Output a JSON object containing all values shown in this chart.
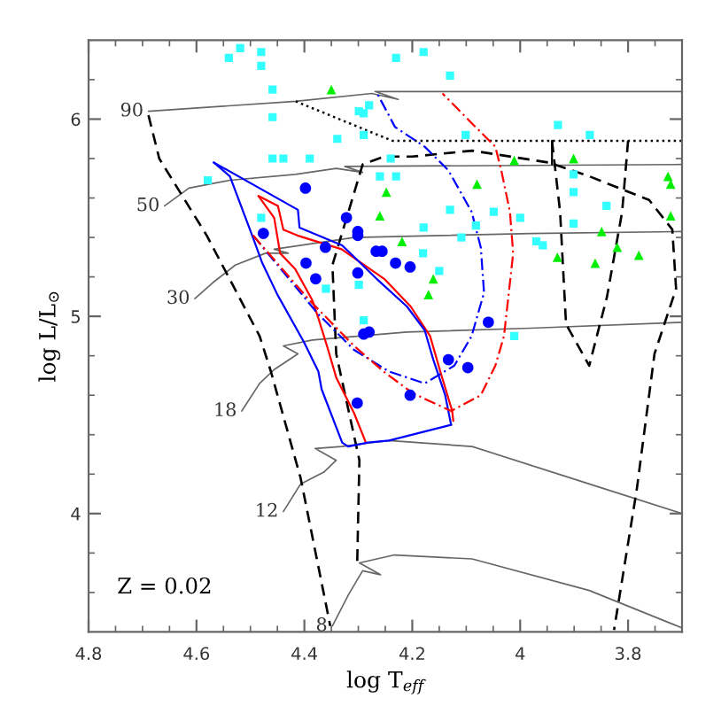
{
  "chart_data": {
    "type": "line",
    "xlabel": "log T$_{eff}$",
    "ylabel": "log L/L$_{⊙}$",
    "xlim": [
      4.8,
      3.7
    ],
    "ylim": [
      3.4,
      6.4
    ],
    "xticks": [
      4.8,
      {
        "value": 4.75,
        "label": null
      },
      {
        "value": 4.7,
        "label": null
      },
      {
        "value": 4.65,
        "label": null
      },
      4.6,
      {
        "value": 4.55,
        "label": null
      },
      {
        "value": 4.5,
        "label": null
      },
      {
        "value": 4.45,
        "label": null
      },
      4.4,
      {
        "value": 4.35,
        "label": null
      },
      {
        "value": 4.3,
        "label": null
      },
      {
        "value": 4.25,
        "label": null
      },
      4.2,
      {
        "value": 4.15,
        "label": null
      },
      {
        "value": 4.1,
        "label": null
      },
      {
        "value": 4.05,
        "label": null
      },
      4,
      {
        "value": 3.95,
        "label": null
      },
      {
        "value": 3.9,
        "label": null
      },
      {
        "value": 3.85,
        "label": null
      },
      3.8,
      {
        "value": 3.75,
        "label": null
      }
    ],
    "yticks": [
      {
        "value": 3.6,
        "label": null
      },
      {
        "value": 3.8,
        "label": null
      },
      4,
      {
        "value": 4.2,
        "label": null
      },
      {
        "value": 4.4,
        "label": null
      },
      {
        "value": 4.6,
        "label": null
      },
      {
        "value": 4.8,
        "label": null
      },
      5,
      {
        "value": 5.2,
        "label": null
      },
      {
        "value": 5.4,
        "label": null
      },
      {
        "value": 5.6,
        "label": null
      },
      {
        "value": 5.8,
        "label": null
      },
      6,
      {
        "value": 6.2,
        "label": null
      }
    ],
    "annotations": [
      "Z = 0.02"
    ],
    "series": [
      {
        "name": "90",
        "color": "#666666",
        "line_style": "solid",
        "x": [
          4.689,
          4.416,
          4.275,
          4.226,
          4.269,
          4.111,
          3.7
        ],
        "values": [
          6.04,
          6.09,
          6.13,
          6.1,
          6.14,
          6.14,
          6.14
        ]
      },
      {
        "name": "50",
        "color": "#666666",
        "line_style": "solid",
        "x": [
          4.659,
          4.614,
          4.538,
          4.417,
          4.341,
          4.292,
          4.325,
          3.7
        ],
        "values": [
          5.56,
          5.65,
          5.69,
          5.72,
          5.75,
          5.73,
          5.76,
          5.77
        ]
      },
      {
        "name": "30",
        "color": "#666666",
        "line_style": "solid",
        "x": [
          4.603,
          4.57,
          4.528,
          4.472,
          4.43,
          4.456,
          4.308,
          3.98,
          3.7
        ],
        "values": [
          5.09,
          5.17,
          5.26,
          5.32,
          5.32,
          5.34,
          5.4,
          5.42,
          5.43
        ]
      },
      {
        "name": "18",
        "color": "#666666",
        "line_style": "solid",
        "x": [
          4.516,
          4.483,
          4.456,
          4.412,
          4.439,
          4.385,
          4.21,
          3.98,
          3.7
        ],
        "values": [
          4.52,
          4.66,
          4.73,
          4.81,
          4.85,
          4.88,
          4.92,
          4.94,
          4.97
        ]
      },
      {
        "name": "12",
        "color": "#666666",
        "line_style": "solid",
        "x": [
          4.439,
          4.407,
          4.364,
          4.341,
          4.38,
          4.331,
          4.275,
          4.243,
          4.089,
          3.872,
          3.7
        ],
        "values": [
          4.01,
          4.15,
          4.21,
          4.27,
          4.33,
          4.34,
          4.36,
          4.37,
          4.34,
          4.15,
          4.0
        ]
      },
      {
        "name": "8",
        "color": "#666666",
        "line_style": "solid",
        "x": [
          4.348,
          4.318,
          4.292,
          4.259,
          4.298,
          4.233,
          4.089,
          3.872,
          3.7
        ],
        "values": [
          3.43,
          3.59,
          3.71,
          3.69,
          3.75,
          3.79,
          3.77,
          3.61,
          3.42
        ]
      },
      {
        "color": "#000000",
        "line_style": "dashed",
        "x": [
          4.689,
          4.669,
          4.581,
          4.483,
          4.462,
          4.407,
          4.352
        ],
        "values": [
          6.02,
          5.8,
          5.41,
          4.9,
          4.72,
          4.18,
          3.43
        ]
      },
      {
        "color": "#000000",
        "line_style": "dashed",
        "x": [
          4.302,
          4.298,
          4.341,
          4.348,
          4.292,
          4.252,
          4.2,
          4.089,
          3.948,
          3.872,
          3.761,
          3.718,
          3.711,
          3.751,
          3.784,
          3.826
        ],
        "values": [
          3.76,
          4.27,
          4.81,
          5.26,
          5.77,
          5.81,
          5.81,
          5.84,
          5.78,
          5.71,
          5.59,
          5.44,
          5.14,
          4.81,
          4.12,
          3.41
        ]
      },
      {
        "color": "#000000",
        "line_style": "dashed",
        "x": [
          3.941,
          3.926,
          3.915,
          3.872,
          3.839,
          3.811,
          3.8
        ],
        "values": [
          5.89,
          5.53,
          4.96,
          4.75,
          5.1,
          5.53,
          5.89
        ]
      },
      {
        "color": "#000000",
        "line_style": "solid",
        "x": [
          3.941,
          3.941
        ],
        "values": [
          5.89,
          5.77
        ]
      },
      {
        "color": "#000000",
        "line_style": "dotted",
        "x": [
          4.416,
          4.237,
          3.7
        ],
        "values": [
          6.09,
          5.89,
          5.89
        ]
      },
      {
        "color": "#ff0000",
        "line_style": "solid",
        "x": [
          4.485,
          4.449,
          4.439,
          4.413,
          4.331,
          4.252,
          4.203,
          4.167,
          4.148,
          4.126,
          4.124
        ],
        "values": [
          5.61,
          5.56,
          5.44,
          5.41,
          5.34,
          5.19,
          5.05,
          4.9,
          4.72,
          4.52,
          4.47
        ]
      },
      {
        "color": "#ff0000",
        "line_style": "solid",
        "x": [
          4.485,
          4.456,
          4.445,
          4.417,
          4.385,
          4.374,
          4.357,
          4.341,
          4.308,
          4.286
        ],
        "values": [
          5.61,
          5.5,
          5.32,
          5.24,
          5.08,
          4.99,
          4.84,
          4.69,
          4.51,
          4.36
        ]
      },
      {
        "color": "#0000ff",
        "line_style": "solid",
        "x": [
          4.568,
          4.412,
          4.409,
          4.33,
          4.266,
          4.21,
          4.177,
          4.161,
          4.139,
          4.128
        ],
        "values": [
          5.78,
          5.54,
          5.45,
          5.36,
          5.19,
          5.05,
          4.93,
          4.78,
          4.6,
          4.45
        ]
      },
      {
        "color": "#0000ff",
        "line_style": "solid",
        "x": [
          4.568,
          4.538,
          4.494,
          4.478,
          4.45,
          4.401,
          4.374,
          4.368,
          4.33,
          4.319,
          4.282,
          4.243,
          4.128
        ],
        "values": [
          5.78,
          5.71,
          5.39,
          5.27,
          5.11,
          4.87,
          4.72,
          4.63,
          4.36,
          4.34,
          4.36,
          4.37,
          4.45
        ]
      },
      {
        "color": "#0000ff",
        "line_style": "dashdot",
        "x": [
          4.495,
          4.374,
          4.308,
          4.243,
          4.177,
          4.122,
          4.09,
          4.067,
          4.073,
          4.09,
          4.133,
          4.177,
          4.232,
          4.265
        ],
        "values": [
          5.41,
          5.01,
          4.83,
          4.72,
          4.66,
          4.75,
          4.9,
          5.12,
          5.35,
          5.53,
          5.74,
          5.86,
          5.96,
          6.13
        ]
      },
      {
        "color": "#ff0000",
        "line_style": "dashdot",
        "x": [
          4.495,
          4.39,
          4.308,
          4.253,
          4.199,
          4.128,
          4.073,
          4.046,
          4.03,
          4.019,
          4.013,
          4.019,
          4.035,
          4.046,
          4.09,
          4.144
        ],
        "values": [
          5.41,
          5.08,
          4.85,
          4.72,
          4.61,
          4.52,
          4.6,
          4.75,
          4.9,
          5.17,
          5.32,
          5.53,
          5.74,
          5.86,
          5.98,
          6.13
        ]
      },
      {
        "type": "scatter",
        "color": "#33ffff",
        "marker": "square",
        "x": [
          4.519,
          4.54,
          4.48,
          4.48,
          4.459,
          4.459,
          4.459,
          4.439,
          4.39,
          4.579,
          4.48,
          4.299,
          4.29,
          4.28,
          4.29,
          4.339,
          4.36,
          4.299,
          4.29,
          4.23,
          4.179,
          4.13,
          4.101,
          3.93,
          3.871,
          4.24,
          4.26,
          4.23,
          3.901,
          3.901,
          3.84,
          4.13,
          4.049,
          4.0,
          4.082,
          4.179,
          3.901,
          4.109,
          3.97,
          3.958,
          4.18,
          4.15,
          4.011
        ],
        "values": [
          6.36,
          6.31,
          6.34,
          6.27,
          6.15,
          6.01,
          5.8,
          5.8,
          5.8,
          5.69,
          5.5,
          6.04,
          6.03,
          6.07,
          5.92,
          5.9,
          5.14,
          5.16,
          4.98,
          6.31,
          6.34,
          6.22,
          5.92,
          5.97,
          5.92,
          5.8,
          5.71,
          5.71,
          5.72,
          5.63,
          5.56,
          5.54,
          5.53,
          5.5,
          5.46,
          5.45,
          5.47,
          5.4,
          5.38,
          5.36,
          5.32,
          5.23,
          4.9
        ]
      },
      {
        "type": "scatter",
        "color": "#00ee00",
        "marker": "triangle",
        "x": [
          4.35,
          4.011,
          3.901,
          3.726,
          3.721,
          4.248,
          4.08,
          4.26,
          4.219,
          3.931,
          3.849,
          3.82,
          3.78,
          3.861,
          3.721,
          4.161,
          4.17
        ],
        "values": [
          6.15,
          5.79,
          5.8,
          5.71,
          5.67,
          5.63,
          5.67,
          5.51,
          5.38,
          5.3,
          5.43,
          5.35,
          5.31,
          5.27,
          5.51,
          5.19,
          5.11
        ]
      },
      {
        "type": "scatter",
        "color": "#0000ff",
        "marker": "circle",
        "x": [
          4.398,
          4.322,
          4.301,
          4.301,
          4.476,
          4.361,
          4.267,
          4.256,
          4.231,
          4.204,
          4.397,
          4.379,
          4.301,
          4.29,
          4.28,
          4.059,
          4.133,
          4.097,
          4.204,
          4.302
        ],
        "values": [
          5.65,
          5.5,
          5.43,
          5.41,
          5.42,
          5.35,
          5.33,
          5.33,
          5.27,
          5.25,
          5.27,
          5.19,
          5.22,
          4.91,
          4.92,
          4.97,
          4.78,
          4.74,
          4.6,
          4.56
        ]
      }
    ]
  }
}
